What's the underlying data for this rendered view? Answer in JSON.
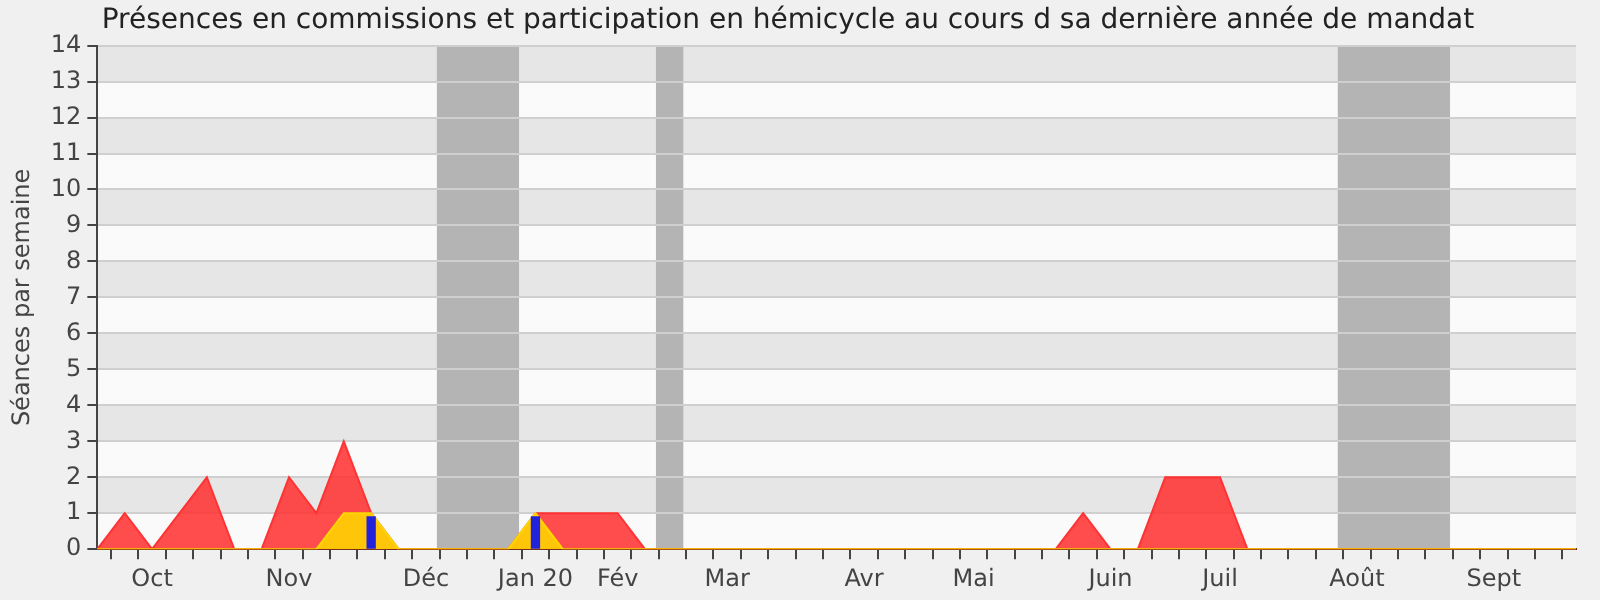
{
  "chart_data": {
    "type": "area",
    "title": "Présences en commissions et participation en hémicycle au cours d sa dernière année de mandat",
    "ylabel": "Séances par semaine",
    "categories": [
      null,
      null,
      "Oct",
      null,
      null,
      null,
      null,
      "Nov",
      null,
      null,
      null,
      null,
      "Déc",
      null,
      null,
      null,
      "Jan 20",
      null,
      null,
      "Fév",
      null,
      null,
      null,
      "Mar",
      null,
      null,
      null,
      null,
      "Avr",
      null,
      null,
      null,
      "Mai",
      null,
      null,
      null,
      null,
      "Juin",
      null,
      null,
      null,
      "Juil",
      null,
      null,
      null,
      null,
      "Août",
      null,
      null,
      null,
      null,
      "Sept",
      null,
      null,
      null
    ],
    "series": [
      {
        "color": "#ff3333",
        "values": [
          0,
          1,
          0,
          1,
          2,
          0,
          0,
          2,
          1,
          3,
          1,
          0,
          0,
          0,
          0,
          0,
          1,
          1,
          1,
          1,
          0,
          0,
          0,
          0,
          0,
          0,
          0,
          0,
          0,
          0,
          0,
          0,
          0,
          0,
          0,
          0,
          1,
          0,
          0,
          2,
          2,
          2,
          0,
          0,
          0,
          0,
          0,
          0,
          0,
          0,
          0,
          0,
          0,
          0,
          0
        ]
      },
      {
        "color": "#ffd700",
        "values": [
          0,
          0,
          0,
          0,
          0,
          0,
          0,
          0,
          0,
          1,
          1,
          0,
          0,
          0,
          0,
          0,
          1,
          0,
          0,
          0,
          0,
          0,
          0,
          0,
          0,
          0,
          0,
          0,
          0,
          0,
          0,
          0,
          0,
          0,
          0,
          0,
          0,
          0,
          0,
          0,
          0,
          0,
          0,
          0,
          0,
          0,
          0,
          0,
          0,
          0,
          0,
          0,
          0,
          0,
          0
        ]
      },
      {
        "type": "bar",
        "color": "#2222dd",
        "values": [
          null,
          null,
          null,
          null,
          null,
          null,
          null,
          null,
          null,
          null,
          0.9,
          null,
          null,
          null,
          null,
          null,
          0.9,
          null,
          null,
          null,
          null,
          null,
          null,
          null,
          null,
          null,
          null,
          null,
          null,
          null,
          null,
          null,
          null,
          null,
          null,
          null,
          null,
          null,
          null,
          null,
          null,
          null,
          null,
          null,
          null,
          null,
          null,
          null,
          null,
          null,
          null,
          null,
          null,
          null,
          null
        ]
      }
    ],
    "ylim": [
      0,
      14
    ],
    "yticks": [
      0,
      1,
      2,
      3,
      4,
      5,
      6,
      7,
      8,
      9,
      10,
      11,
      12,
      13,
      14
    ],
    "grid": "y",
    "legend": false
  }
}
